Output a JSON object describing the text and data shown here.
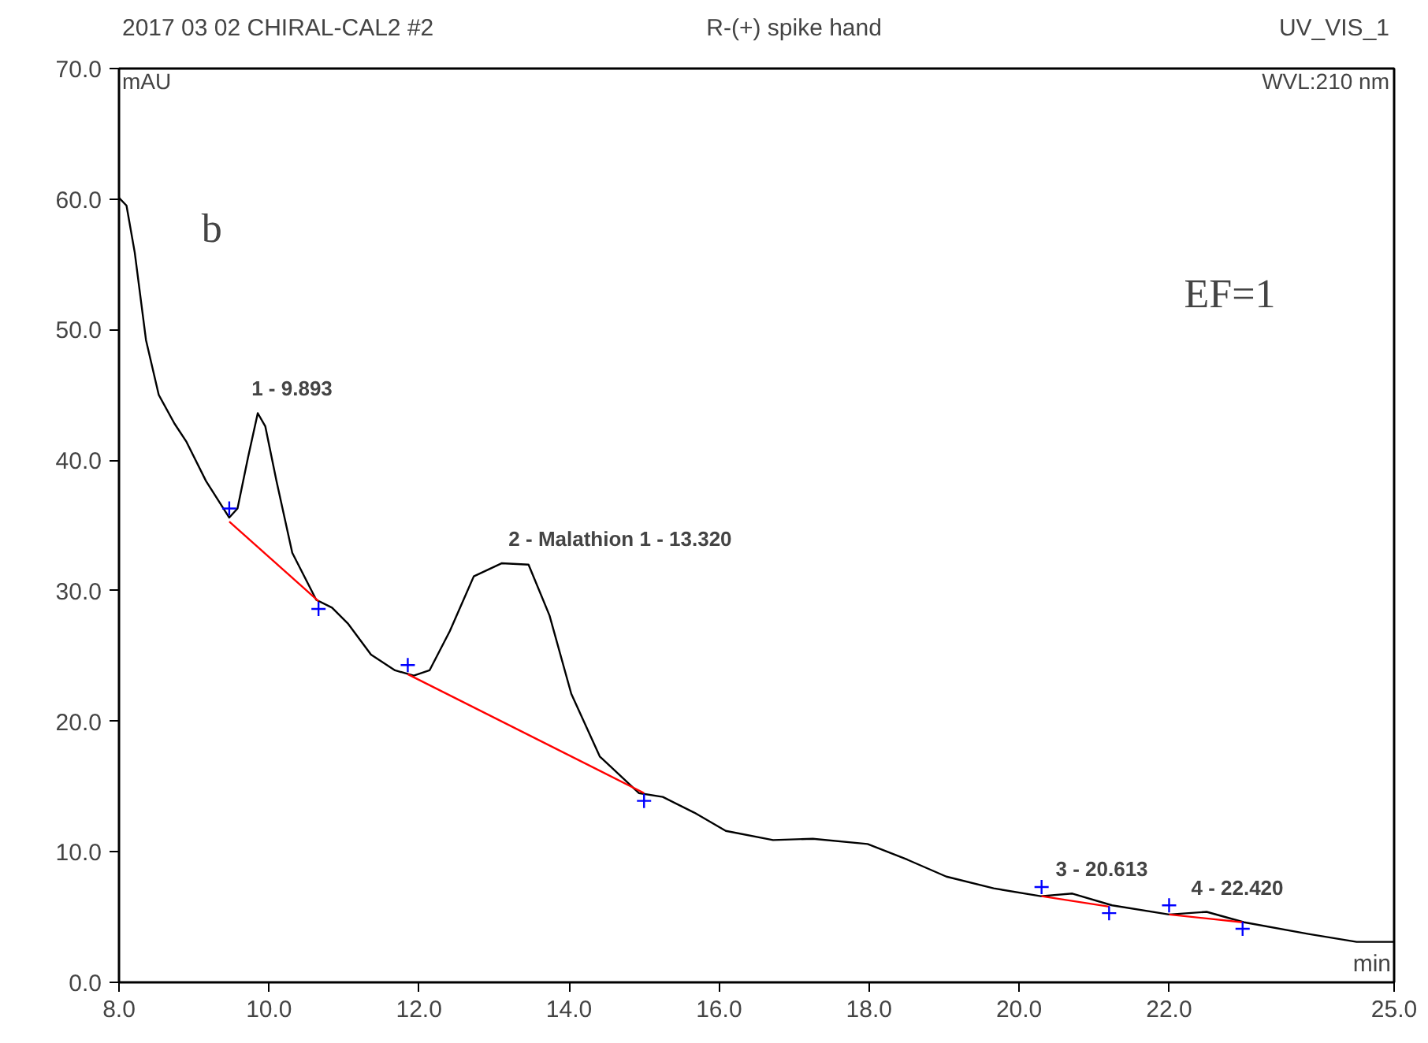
{
  "chart_data": {
    "type": "line",
    "title": "R-(+) spike hand",
    "xlabel": "min",
    "ylabel": "mAU",
    "annotations": [
      "2017 03 02 CHIRAL-CAL2 #2",
      "UV_VIS_1",
      "WVL:210 nm",
      "b",
      "EF=1",
      {
        "text": "1 - 9.893",
        "x": 9.893,
        "y": 43.6
      },
      {
        "text": "2 - Malathion 1 - 13.320",
        "x": 13.32,
        "y": 32.1
      },
      {
        "text": "3 - 20.613",
        "x": 20.613,
        "y": 6.8
      },
      {
        "text": "4 - 22.420",
        "x": 22.42,
        "y": 5.4
      }
    ],
    "xlim": [
      8.0,
      25.0
    ],
    "ylim": [
      0.0,
      70.0
    ],
    "xticks": [
      {
        "value": 8,
        "label": "8.0"
      },
      {
        "value": 10,
        "label": "10.0"
      },
      {
        "value": 12,
        "label": "12.0"
      },
      {
        "value": 14,
        "label": "14.0"
      },
      {
        "value": 16,
        "label": "16.0"
      },
      {
        "value": 18,
        "label": "18.0"
      },
      {
        "value": 20,
        "label": "20.0"
      },
      {
        "value": 22,
        "label": "22.0"
      },
      {
        "value": 25,
        "label": "25.0"
      }
    ],
    "yticks": [
      {
        "value": 0,
        "label": "0.0"
      },
      {
        "value": 10,
        "label": "10.0"
      },
      {
        "value": 20,
        "label": "20.0"
      },
      {
        "value": 30,
        "label": "30.0"
      },
      {
        "value": 40,
        "label": "40.0"
      },
      {
        "value": 50,
        "label": "50.0"
      },
      {
        "value": 60,
        "label": "60.0"
      },
      {
        "value": 70,
        "label": "70.0"
      }
    ],
    "grid": false,
    "series": [
      {
        "color": "#000000",
        "x": [
          8.0,
          8.1,
          8.21,
          8.36,
          8.53,
          8.74,
          8.9,
          9.16,
          9.47,
          9.58,
          9.72,
          9.85,
          9.95,
          10.1,
          10.31,
          10.63,
          10.84,
          11.05,
          11.36,
          11.68,
          11.93,
          12.14,
          12.41,
          12.73,
          13.1,
          13.46,
          13.74,
          14.03,
          14.41,
          14.93,
          15.25,
          15.67,
          16.09,
          16.72,
          17.25,
          17.98,
          18.51,
          19.03,
          19.66,
          20.29,
          20.71,
          21.24,
          22.0,
          22.5,
          23.0,
          23.86,
          24.5,
          25.0
        ],
        "values": [
          60.1,
          59.5,
          55.9,
          49.2,
          45.0,
          42.8,
          41.4,
          38.4,
          35.6,
          36.3,
          40.2,
          43.6,
          42.6,
          38.4,
          32.9,
          29.3,
          28.7,
          27.5,
          25.1,
          23.9,
          23.5,
          23.9,
          26.9,
          31.1,
          32.1,
          32.0,
          28.1,
          22.1,
          17.3,
          14.5,
          14.2,
          13.0,
          11.6,
          10.9,
          11.0,
          10.6,
          9.4,
          8.1,
          7.2,
          6.6,
          6.8,
          5.9,
          5.2,
          5.4,
          4.6,
          3.7,
          3.1,
          3.1
        ]
      },
      {
        "type": "line",
        "color": "#ff0000",
        "x": [
          9.47,
          10.66
        ],
        "values": [
          35.3,
          29.2
        ]
      },
      {
        "type": "line",
        "color": "#ff0000",
        "x": [
          11.85,
          15.0
        ],
        "values": [
          23.6,
          14.5
        ]
      },
      {
        "type": "line",
        "color": "#ff0000",
        "x": [
          20.3,
          21.2
        ],
        "values": [
          6.6,
          5.8
        ]
      },
      {
        "type": "line",
        "color": "#ff0000",
        "x": [
          22.0,
          22.98
        ],
        "values": [
          5.2,
          4.6
        ]
      },
      {
        "type": "scatter",
        "marker": "cross",
        "color": "#0000ff",
        "x": [
          9.47,
          10.66,
          11.85,
          15.0,
          20.3,
          21.2,
          22.0,
          22.98
        ],
        "values": [
          36.3,
          28.6,
          24.3,
          13.9,
          7.3,
          5.3,
          5.9,
          4.1
        ]
      }
    ]
  }
}
